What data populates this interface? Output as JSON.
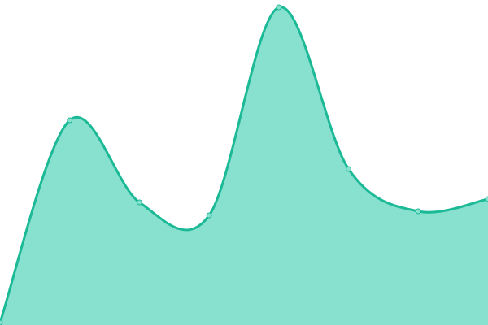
{
  "chart_data": {
    "type": "area",
    "title": "",
    "xlabel": "",
    "ylabel": "",
    "x": [
      0,
      1,
      2,
      3,
      4,
      5,
      6,
      7
    ],
    "values": [
      3,
      252,
      151,
      135,
      391,
      192,
      140,
      155
    ],
    "ylim": [
      0,
      400
    ],
    "grid": false,
    "axes_visible": false,
    "curve": "smooth",
    "markers": true,
    "colors": {
      "line": "#1bb996",
      "fill": "#88e0cf",
      "marker_fill": "#88e0cf",
      "marker_stroke": "#1bb996"
    }
  }
}
